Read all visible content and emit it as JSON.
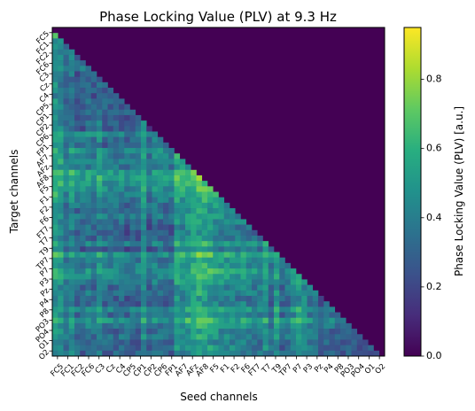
{
  "chart_data": {
    "type": "heatmap",
    "title": "Phase Locking Value (PLV) at 9.3 Hz",
    "xlabel": "Seed channels",
    "ylabel": "Target channels",
    "colorbar_label": "Phase Locking Value (PLV) [a.u.]",
    "colorbar_ticks": [
      "0.0",
      "0.2",
      "0.4",
      "0.6",
      "0.8"
    ],
    "colorbar_tick_values": [
      0.0,
      0.2,
      0.4,
      0.6,
      0.8
    ],
    "vmin": 0.0,
    "vmax": 0.95,
    "colormap": "viridis",
    "n_channels": 60,
    "mask": "upper triangle (including diagonal) = 0",
    "x_tick_labels": [
      "FC5",
      "FC1",
      "FC2",
      "FC6",
      "C3",
      "Cz",
      "C4",
      "CP5",
      "CP1",
      "CP2",
      "CP6",
      "FP1",
      "AF7",
      "AFz",
      "AF8",
      "F5",
      "F1",
      "F2",
      "F6",
      "FT7",
      "T7",
      "T9",
      "TP7",
      "P7",
      "P3",
      "Pz",
      "P4",
      "P8",
      "PO3",
      "PO4",
      "O1",
      "O2"
    ],
    "y_tick_labels": [
      "FC5",
      "FC1",
      "FC2",
      "FC6",
      "C3",
      "Cz",
      "C4",
      "CP5",
      "CP1",
      "CP2",
      "CP6",
      "FP1",
      "AF7",
      "AFz",
      "AF8",
      "F5",
      "F1",
      "F2",
      "F6",
      "FT7",
      "T7",
      "T9",
      "TP7",
      "P7",
      "P3",
      "Pz",
      "P4",
      "P8",
      "PO3",
      "PO4",
      "O1",
      "O2"
    ],
    "column_means": [
      0.62,
      0.55,
      0.32,
      0.5,
      0.3,
      0.28,
      0.35,
      0.3,
      0.45,
      0.3,
      0.28,
      0.27,
      0.3,
      0.25,
      0.3,
      0.26,
      0.55,
      0.2,
      0.35,
      0.3,
      0.28,
      0.25,
      0.62,
      0.55,
      0.6,
      0.7,
      0.75,
      0.72,
      0.68,
      0.6,
      0.55,
      0.5,
      0.52,
      0.45,
      0.5,
      0.38,
      0.4,
      0.42,
      0.55,
      0.3,
      0.6,
      0.25,
      0.35,
      0.45,
      0.6,
      0.55,
      0.4,
      0.3,
      0.25,
      0.3,
      0.25,
      0.2,
      0.25,
      0.2,
      0.22,
      0.2,
      0.25,
      0.2,
      0.2,
      0.2
    ],
    "row_means": [
      0.0,
      0.6,
      0.4,
      0.35,
      0.3,
      0.28,
      0.25,
      0.45,
      0.25,
      0.2,
      0.28,
      0.22,
      0.2,
      0.3,
      0.25,
      0.28,
      0.22,
      0.3,
      0.25,
      0.55,
      0.4,
      0.3,
      0.6,
      0.5,
      0.55,
      0.45,
      0.7,
      0.75,
      0.65,
      0.6,
      0.55,
      0.45,
      0.4,
      0.35,
      0.45,
      0.35,
      0.3,
      0.25,
      0.3,
      0.5,
      0.25,
      0.65,
      0.45,
      0.5,
      0.6,
      0.55,
      0.45,
      0.35,
      0.4,
      0.3,
      0.3,
      0.55,
      0.35,
      0.65,
      0.45,
      0.35,
      0.4,
      0.3,
      0.35,
      0.3
    ]
  }
}
